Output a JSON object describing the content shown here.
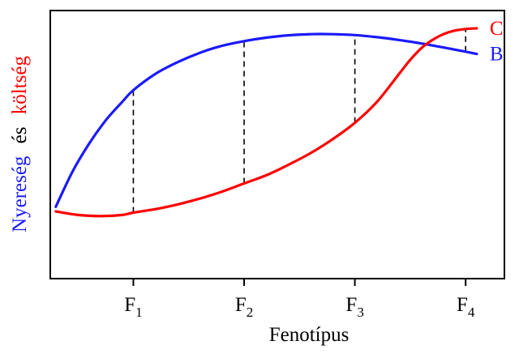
{
  "chart_data": {
    "type": "line",
    "xlabel": "Fenotípus",
    "ylabel": {
      "part1": "Nyereség",
      "part2": "és",
      "part3": "költség"
    },
    "xticks": [
      {
        "letter": "F",
        "sub": "1",
        "x": 1
      },
      {
        "letter": "F",
        "sub": "2",
        "x": 2
      },
      {
        "letter": "F",
        "sub": "3",
        "x": 3
      },
      {
        "letter": "F",
        "sub": "4",
        "x": 4
      }
    ],
    "xlim": [
      0.25,
      4.35
    ],
    "ylim": [
      0,
      1
    ],
    "colors": {
      "benefit": "#1a1aff",
      "cost": "#ff0000",
      "axis": "#000000",
      "dashed": "#000000",
      "ylabel_mid": "#000000"
    },
    "series": [
      {
        "key": "benefit",
        "name": "B",
        "color": "#1a1aff",
        "x": [
          0.3,
          0.45,
          0.6,
          0.75,
          0.9,
          1.0,
          1.2,
          1.4,
          1.6,
          1.8,
          2.0,
          2.2,
          2.4,
          2.6,
          2.8,
          3.0,
          3.2,
          3.4,
          3.6,
          3.8,
          4.0,
          4.1
        ],
        "y": [
          0.19,
          0.34,
          0.46,
          0.56,
          0.64,
          0.69,
          0.76,
          0.81,
          0.85,
          0.88,
          0.9,
          0.915,
          0.925,
          0.93,
          0.93,
          0.926,
          0.917,
          0.905,
          0.89,
          0.873,
          0.855,
          0.845
        ]
      },
      {
        "key": "cost",
        "name": "C",
        "color": "#ff0000",
        "x": [
          0.3,
          0.5,
          0.7,
          0.9,
          1.0,
          1.2,
          1.4,
          1.6,
          1.8,
          2.0,
          2.2,
          2.4,
          2.6,
          2.8,
          3.0,
          3.2,
          3.4,
          3.5,
          3.6,
          3.7,
          3.8,
          3.9,
          4.0,
          4.1
        ],
        "y": [
          0.17,
          0.155,
          0.15,
          0.155,
          0.165,
          0.18,
          0.2,
          0.225,
          0.255,
          0.29,
          0.325,
          0.37,
          0.42,
          0.48,
          0.55,
          0.64,
          0.76,
          0.82,
          0.87,
          0.905,
          0.93,
          0.945,
          0.952,
          0.955
        ]
      }
    ],
    "dropLines": [
      {
        "x": 1,
        "from": 0.165,
        "to": 0.69
      },
      {
        "x": 2,
        "from": 0.29,
        "to": 0.9
      },
      {
        "x": 3,
        "from": 0.55,
        "to": 0.926
      },
      {
        "x": 4,
        "from": 0.855,
        "to": 0.952
      }
    ]
  }
}
